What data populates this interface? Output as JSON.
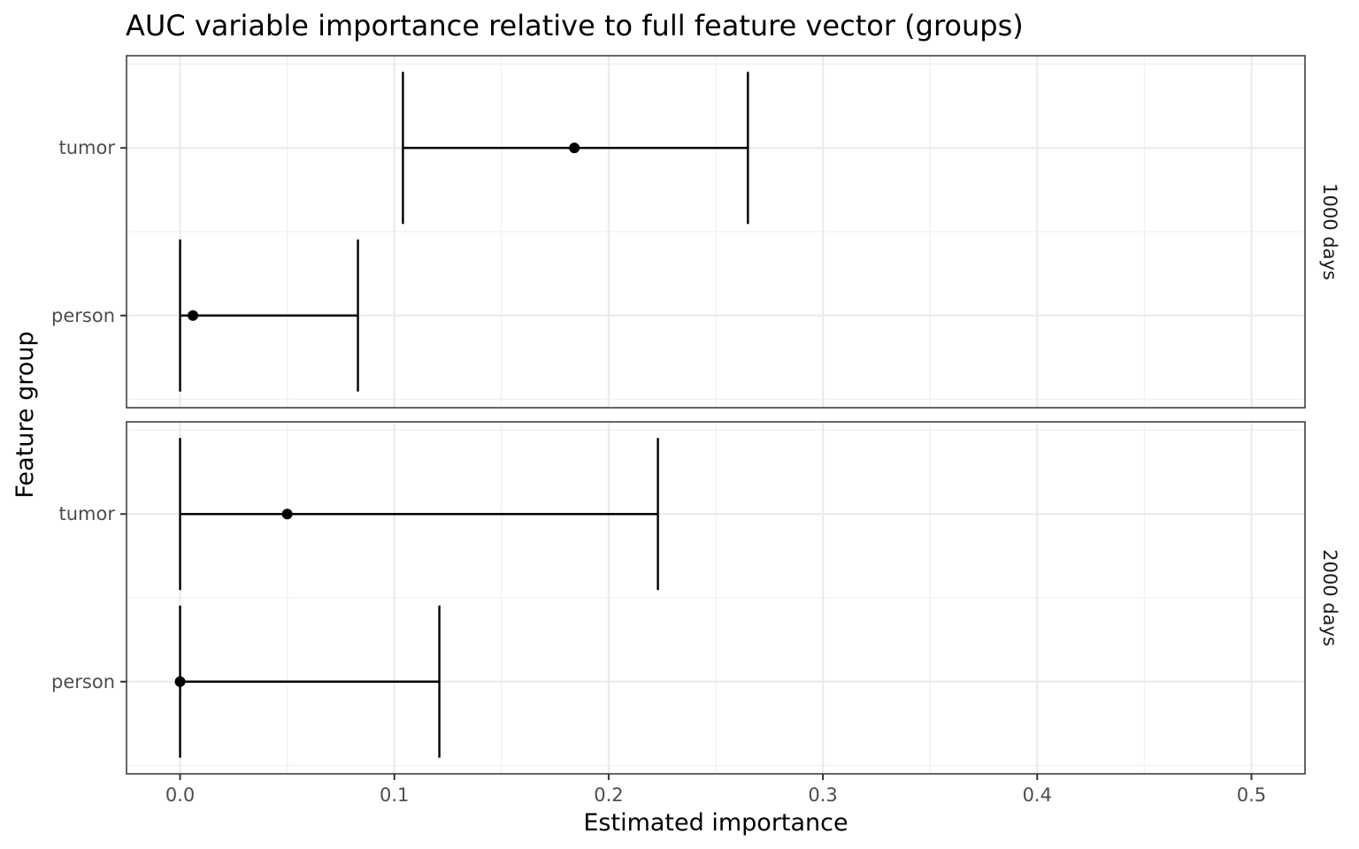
{
  "chart_data": {
    "type": "scatter",
    "title": "AUC variable importance relative to full feature vector (groups)",
    "xlabel": "Estimated importance",
    "ylabel": "Feature group",
    "xlim": [
      -0.025,
      0.525
    ],
    "xticks": [
      0.0,
      0.1,
      0.2,
      0.3,
      0.4,
      0.5
    ],
    "xtick_labels": [
      "0.0",
      "0.1",
      "0.2",
      "0.3",
      "0.4",
      "0.5"
    ],
    "categories": [
      "tumor",
      "person"
    ],
    "grid": true,
    "facet_direction": "rows",
    "panels": [
      {
        "strip_label": "1000 days",
        "points": [
          {
            "group": "tumor",
            "estimate": 0.184,
            "ci_low": 0.104,
            "ci_high": 0.265
          },
          {
            "group": "person",
            "estimate": 0.006,
            "ci_low": 0.0,
            "ci_high": 0.083
          }
        ]
      },
      {
        "strip_label": "2000 days",
        "points": [
          {
            "group": "tumor",
            "estimate": 0.05,
            "ci_low": 0.0,
            "ci_high": 0.223
          },
          {
            "group": "person",
            "estimate": 0.0,
            "ci_low": 0.0,
            "ci_high": 0.121
          }
        ]
      }
    ]
  }
}
